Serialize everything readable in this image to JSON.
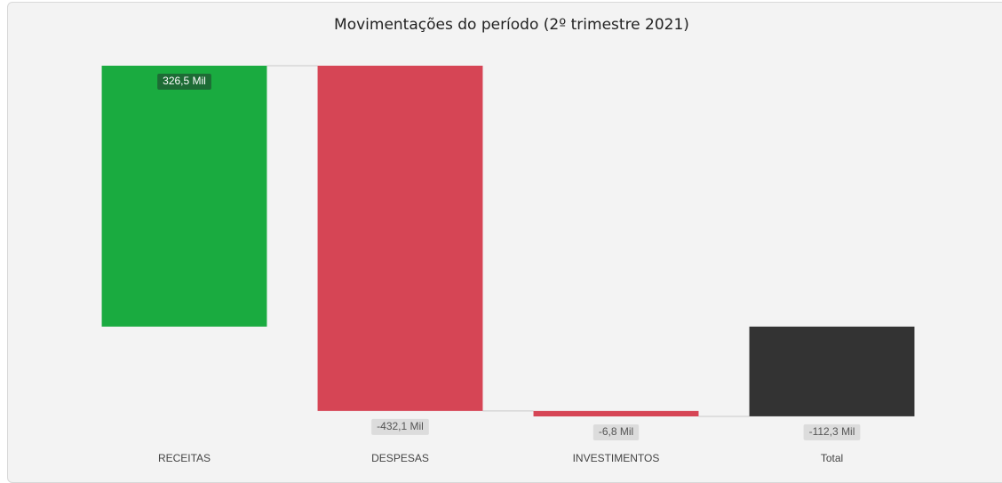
{
  "chart_data": {
    "type": "waterfall",
    "title": "Movimentações do período (2º trimestre 2021)",
    "categories": [
      "RECEITAS",
      "DESPESAS",
      "INVESTIMENTOS",
      "Total"
    ],
    "values": [
      326.5,
      -432.1,
      -6.8,
      -112.3
    ],
    "value_labels": [
      "326,5 Mil",
      "-432,1 Mil",
      "-6,8 Mil",
      "-112,3 Mil"
    ],
    "last_is_total": true,
    "colors": {
      "increase": "#1aab40",
      "decrease": "#d64555",
      "total": "#333333"
    }
  }
}
